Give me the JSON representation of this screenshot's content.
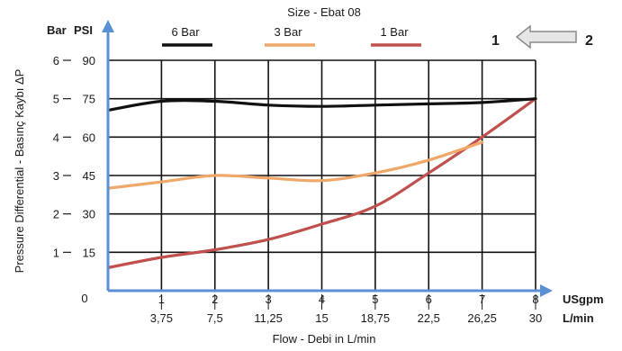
{
  "chart_data": {
    "type": "line",
    "title": "Size - Ebat 08",
    "xlabel": "Flow - Debi  in L/min",
    "ylabel": "Pressure Differential - Basınç Kaybı  ΔP",
    "x_unit_primary": "USgpm",
    "x_unit_secondary": "L/min",
    "y_unit_bar": "Bar",
    "y_unit_psi": "PSI",
    "x_range": [
      0,
      8
    ],
    "y_range_psi": [
      0,
      90
    ],
    "x_ticks_usgpm": [
      "1",
      "2",
      "3",
      "4",
      "5",
      "6",
      "7",
      "8"
    ],
    "x_ticks_lmin": [
      "3,75",
      "7,5",
      "11,25",
      "15",
      "18,75",
      "22,5",
      "26,25",
      "30"
    ],
    "x_zero_label": "0",
    "y_ticks_bar": [
      "1",
      "2",
      "3",
      "4",
      "5",
      "6"
    ],
    "y_ticks_psi": [
      "15",
      "30",
      "45",
      "60",
      "75",
      "90"
    ],
    "grid": true,
    "legend_position": "top",
    "series": [
      {
        "name": "6 Bar",
        "color": "#111111",
        "x": [
          0,
          1,
          2,
          3,
          4,
          5,
          6,
          7,
          8
        ],
        "y": [
          70.5,
          74,
          74,
          72.5,
          72,
          72.5,
          73,
          73.5,
          75
        ]
      },
      {
        "name": "3 Bar",
        "color": "#f0a868",
        "x": [
          0,
          1,
          2,
          3,
          4,
          5,
          6,
          7
        ],
        "y": [
          40,
          42.5,
          45,
          44,
          43,
          46,
          51,
          58
        ]
      },
      {
        "name": "1 Bar",
        "color": "#c0504d",
        "x": [
          0,
          1,
          2,
          3,
          4,
          5,
          6,
          7,
          8
        ],
        "y": [
          9,
          13,
          16,
          20,
          26,
          33,
          46,
          60,
          75
        ]
      }
    ],
    "flow_direction": {
      "from": "2",
      "to": "1"
    }
  }
}
